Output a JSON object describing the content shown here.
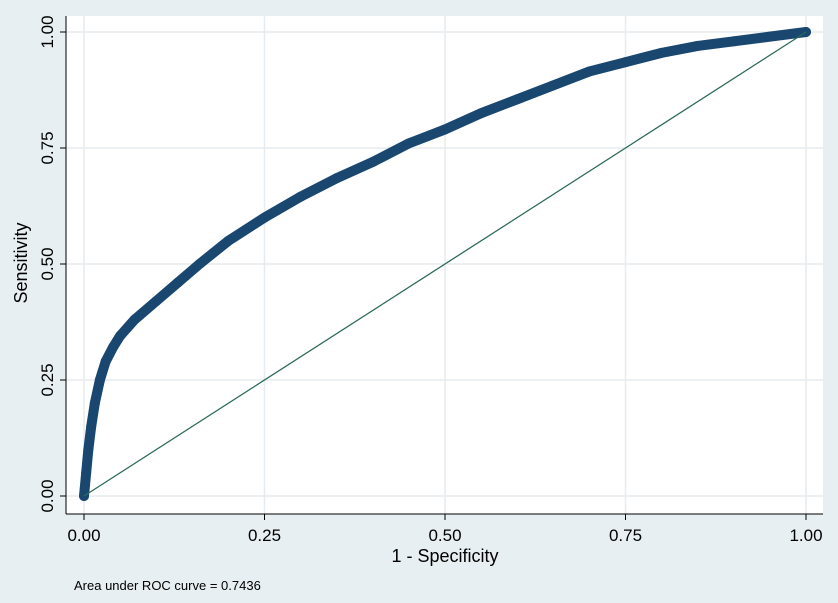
{
  "chart_data": {
    "type": "line",
    "title": "",
    "xlabel": "1 - Specificity",
    "ylabel": "Sensitivity",
    "xlim": [
      0,
      1
    ],
    "ylim": [
      0,
      1
    ],
    "xticks": [
      0,
      0.25,
      0.5,
      0.75,
      1
    ],
    "yticks": [
      0,
      0.25,
      0.5,
      0.75,
      1
    ],
    "xtick_labels": [
      "0.00",
      "0.25",
      "0.50",
      "0.75",
      "1.00"
    ],
    "ytick_labels": [
      "0.00",
      "0.25",
      "0.50",
      "0.75",
      "1.00"
    ],
    "grid": true,
    "legend": "none",
    "note": "Area under ROC curve = 0.7436",
    "series": [
      {
        "kind": "roc-curve",
        "color": "#1a476f",
        "points": [
          {
            "x": 0.0,
            "y": 0.0
          },
          {
            "x": 0.003,
            "y": 0.05
          },
          {
            "x": 0.006,
            "y": 0.1
          },
          {
            "x": 0.01,
            "y": 0.15
          },
          {
            "x": 0.015,
            "y": 0.2
          },
          {
            "x": 0.022,
            "y": 0.25
          },
          {
            "x": 0.03,
            "y": 0.29
          },
          {
            "x": 0.04,
            "y": 0.32
          },
          {
            "x": 0.05,
            "y": 0.345
          },
          {
            "x": 0.07,
            "y": 0.38
          },
          {
            "x": 0.1,
            "y": 0.42
          },
          {
            "x": 0.13,
            "y": 0.46
          },
          {
            "x": 0.16,
            "y": 0.5
          },
          {
            "x": 0.2,
            "y": 0.55
          },
          {
            "x": 0.25,
            "y": 0.6
          },
          {
            "x": 0.3,
            "y": 0.645
          },
          {
            "x": 0.35,
            "y": 0.685
          },
          {
            "x": 0.4,
            "y": 0.72
          },
          {
            "x": 0.45,
            "y": 0.76
          },
          {
            "x": 0.5,
            "y": 0.79
          },
          {
            "x": 0.55,
            "y": 0.825
          },
          {
            "x": 0.6,
            "y": 0.855
          },
          {
            "x": 0.65,
            "y": 0.885
          },
          {
            "x": 0.7,
            "y": 0.915
          },
          {
            "x": 0.75,
            "y": 0.935
          },
          {
            "x": 0.8,
            "y": 0.955
          },
          {
            "x": 0.85,
            "y": 0.97
          },
          {
            "x": 0.9,
            "y": 0.98
          },
          {
            "x": 0.95,
            "y": 0.99
          },
          {
            "x": 1.0,
            "y": 1.0
          }
        ]
      },
      {
        "kind": "reference-line",
        "color": "#2e6b5a",
        "points": [
          {
            "x": 0,
            "y": 0
          },
          {
            "x": 1,
            "y": 1
          }
        ]
      }
    ]
  },
  "colors": {
    "background": "#e8eff2",
    "plot_background": "#ffffff",
    "grid": "#e6ecef",
    "curve": "#1a476f",
    "reference": "#2e6b5a"
  }
}
